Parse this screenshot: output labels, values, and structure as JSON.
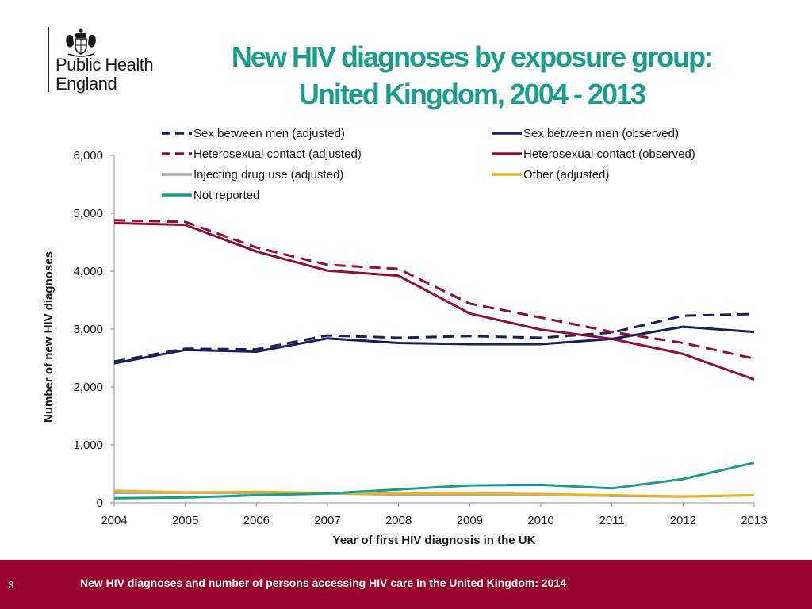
{
  "brand": {
    "line1": "Public Health",
    "line2": "England",
    "crest_icon": "royal-coat-of-arms-icon"
  },
  "slide": {
    "title_line1": "New HIV diagnoses by exposure group:",
    "title_line2": "United Kingdom, 2004 - 2013",
    "page_number": "3",
    "footer_text": "New HIV diagnoses and number of persons accessing HIV care in the United Kingdom: 2014"
  },
  "colors": {
    "title": "#1a9d8a",
    "footer_bg": "#98002e"
  },
  "chart_data": {
    "type": "line",
    "title": "",
    "xlabel": "Year of first HIV diagnosis in the UK",
    "ylabel": "Number of new HIV diagnoses",
    "x": [
      2004,
      2005,
      2006,
      2007,
      2008,
      2009,
      2010,
      2011,
      2012,
      2013
    ],
    "x_tick_labels": [
      "2004",
      "2005",
      "2006",
      "2007",
      "2008",
      "2009",
      "2010",
      "2011",
      "2012",
      "2013"
    ],
    "ylim": [
      0,
      6000
    ],
    "y_ticks": [
      0,
      1000,
      2000,
      3000,
      4000,
      5000,
      6000
    ],
    "y_tick_labels": [
      "0",
      "1,000",
      "2,000",
      "3,000",
      "4,000",
      "5,000",
      "6,000"
    ],
    "grid": false,
    "legend_position": "top",
    "series": [
      {
        "name": "Sex between men (adjusted)",
        "color": "#1a1f5c",
        "dashed": true,
        "values": [
          2440,
          2660,
          2650,
          2890,
          2850,
          2880,
          2850,
          2940,
          3230,
          3260
        ]
      },
      {
        "name": "Sex between men (observed)",
        "color": "#1a1f5c",
        "dashed": false,
        "values": [
          2410,
          2640,
          2610,
          2840,
          2760,
          2740,
          2740,
          2830,
          3040,
          2950
        ]
      },
      {
        "name": "Heterosexual contact (adjusted)",
        "color": "#8e1038",
        "dashed": true,
        "values": [
          4880,
          4850,
          4410,
          4110,
          4040,
          3440,
          3200,
          2950,
          2760,
          2490
        ]
      },
      {
        "name": "Heterosexual contact (observed)",
        "color": "#8e1038",
        "dashed": false,
        "values": [
          4830,
          4800,
          4340,
          4010,
          3920,
          3270,
          2990,
          2830,
          2570,
          2130
        ]
      },
      {
        "name": "Injecting drug use (adjusted)",
        "color": "#a8a8a8",
        "dashed": false,
        "values": [
          170,
          175,
          165,
          160,
          140,
          140,
          135,
          120,
          105,
          130
        ]
      },
      {
        "name": "Other (adjusted)",
        "color": "#e8b420",
        "dashed": false,
        "values": [
          210,
          180,
          190,
          170,
          160,
          160,
          150,
          130,
          110,
          130
        ]
      },
      {
        "name": "Not reported",
        "color": "#1a9d8a",
        "dashed": false,
        "values": [
          80,
          90,
          130,
          160,
          230,
          300,
          310,
          250,
          410,
          690
        ]
      }
    ]
  }
}
